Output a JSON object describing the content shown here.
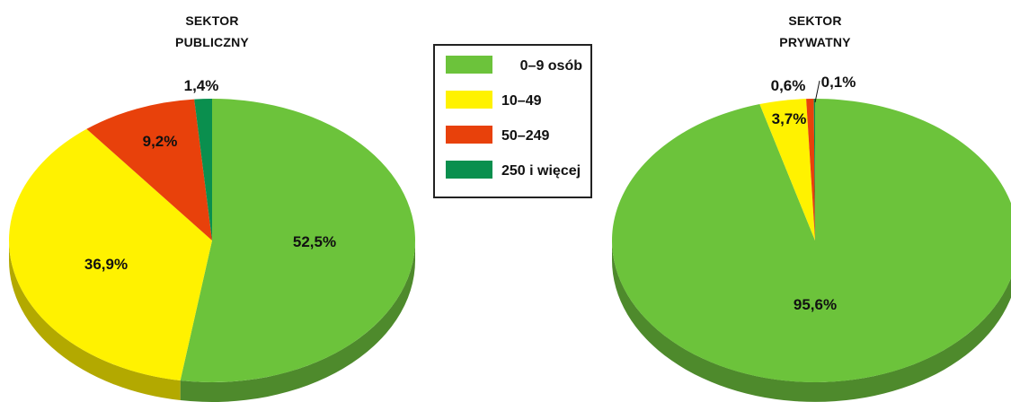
{
  "colors": {
    "0-9": "#6CC33B",
    "10-49": "#FFF200",
    "50-249": "#E8410B",
    "250+": "#0A8F4E"
  },
  "side_colors": {
    "0-9": "#4E8A2C",
    "10-49": "#B3A900",
    "50-249": "#A12E08",
    "250+": "#076236"
  },
  "legend": [
    {
      "key": "0-9",
      "label": "0–9 osób"
    },
    {
      "key": "10-49",
      "label": "10–49"
    },
    {
      "key": "50-249",
      "label": "50–249"
    },
    {
      "key": "250+",
      "label": "250 i więcej"
    }
  ],
  "chart_data": [
    {
      "type": "pie",
      "title_lines": [
        "SEKTOR",
        "PUBLICZNY"
      ],
      "slices": [
        {
          "key": "0-9",
          "label": "52,5%",
          "value": 52.5
        },
        {
          "key": "10-49",
          "label": "36,9%",
          "value": 36.9
        },
        {
          "key": "50-249",
          "label": "9,2%",
          "value": 9.2
        },
        {
          "key": "250+",
          "label": "1,4%",
          "value": 1.4
        }
      ]
    },
    {
      "type": "pie",
      "title_lines": [
        "SEKTOR",
        "PRYWATNY"
      ],
      "slices": [
        {
          "key": "0-9",
          "label": "95,6%",
          "value": 95.6
        },
        {
          "key": "10-49",
          "label": "3,7%",
          "value": 3.7
        },
        {
          "key": "50-249",
          "label": "0,6%",
          "value": 0.6
        },
        {
          "key": "250+",
          "label": "0,1%",
          "value": 0.1
        }
      ]
    }
  ]
}
